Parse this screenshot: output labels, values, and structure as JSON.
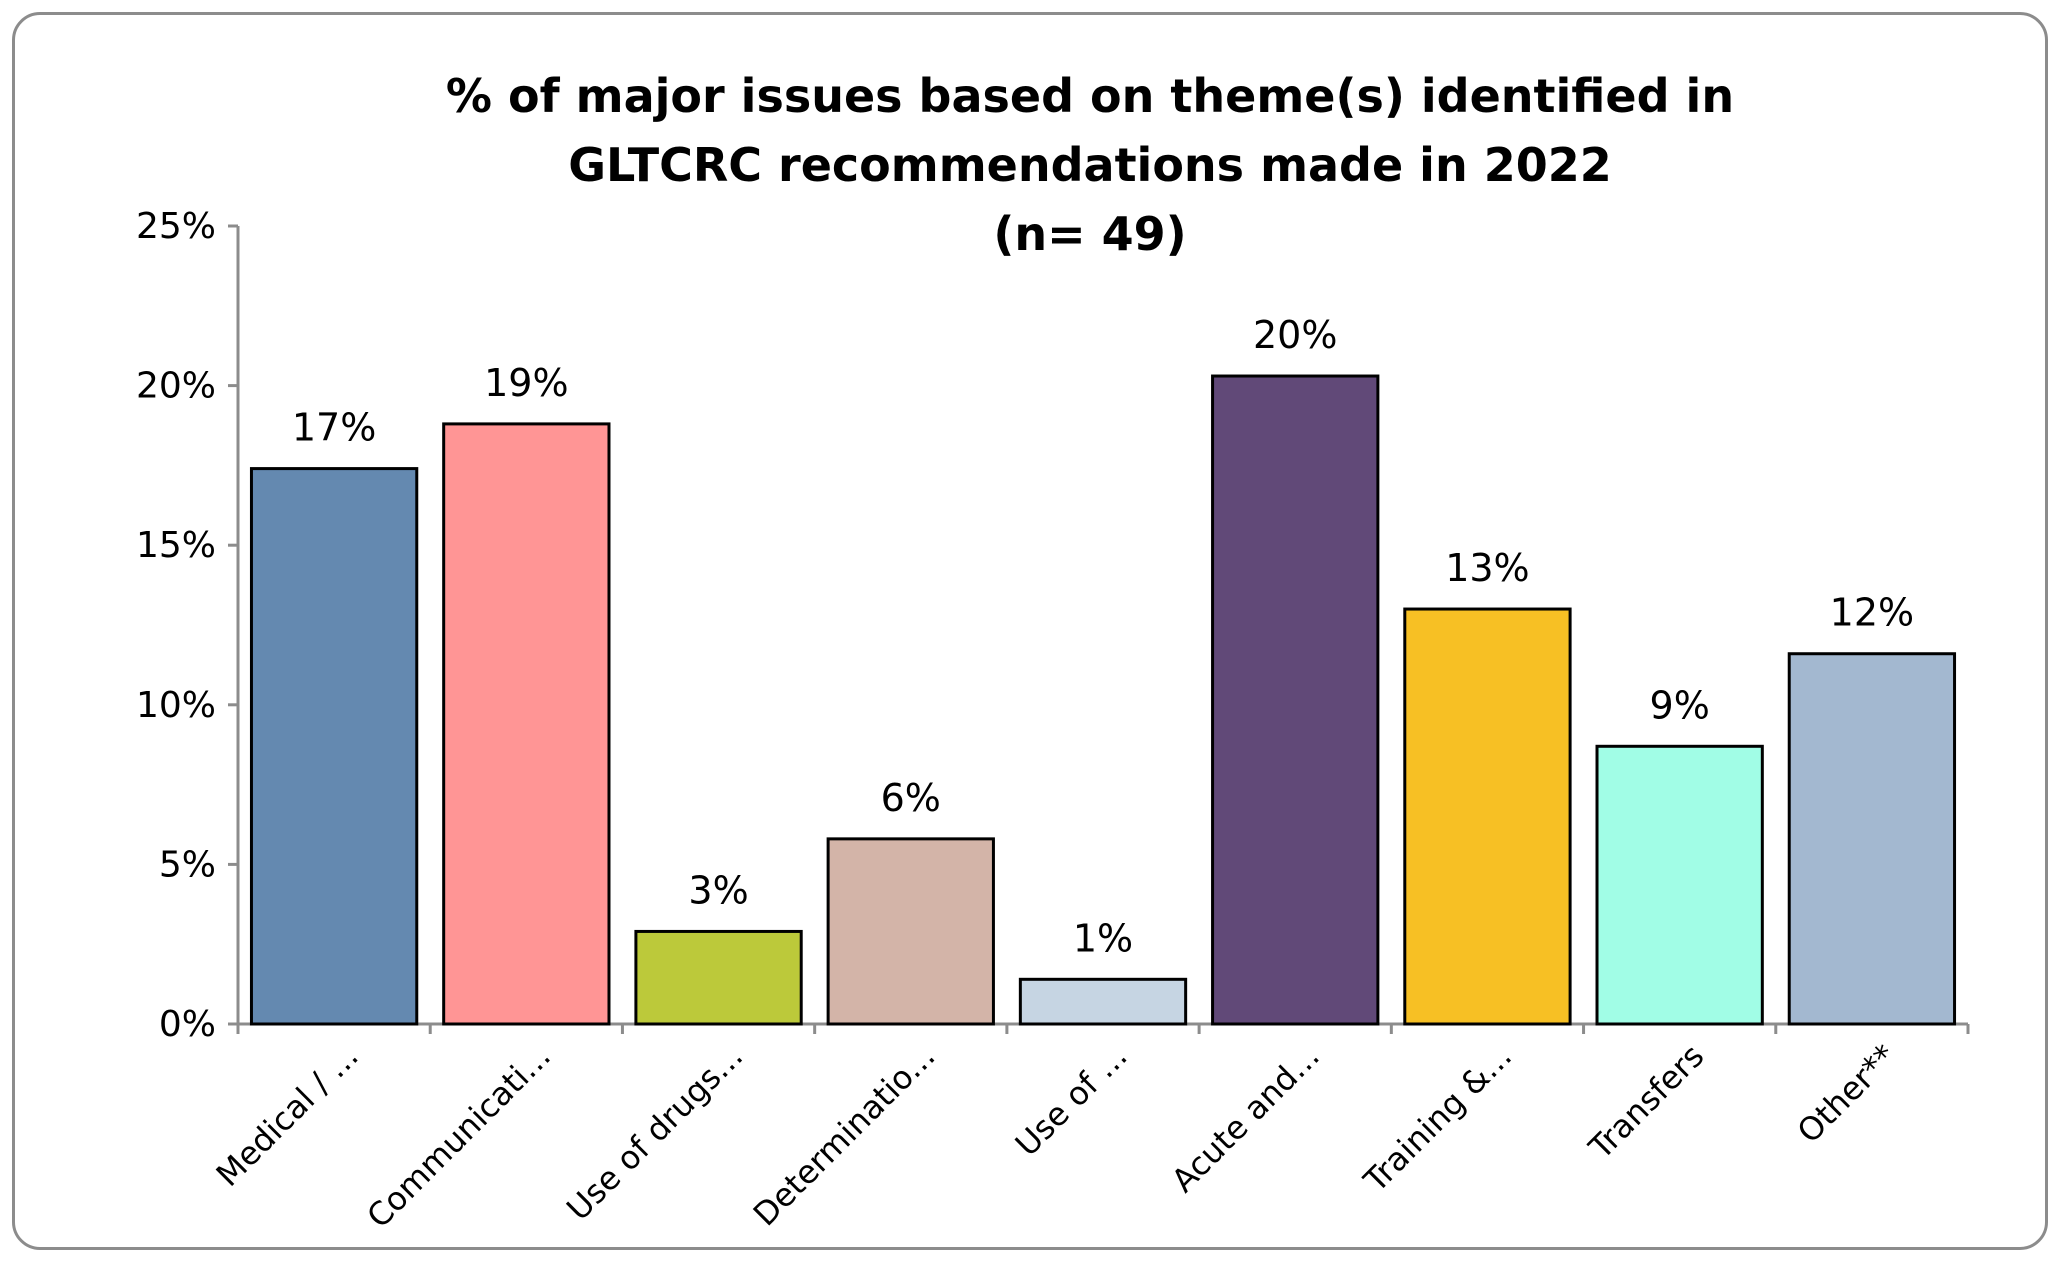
{
  "chart_data": {
    "type": "bar",
    "title_lines": [
      "% of major issues based on theme(s) identified in",
      "GLTCRC recommendations made in 2022",
      "(n= 49)"
    ],
    "categories": [
      "Medical / ...",
      "Communicati...",
      "Use of drugs...",
      "Determinatio...",
      "Use of ...",
      "Acute and...",
      "Training &...",
      "Transfers",
      "Other**"
    ],
    "values": [
      17.4,
      18.8,
      2.9,
      5.8,
      1.4,
      20.3,
      13.0,
      8.7,
      11.6
    ],
    "data_labels": [
      "17%",
      "19%",
      "3%",
      "6%",
      "1%",
      "20%",
      "13%",
      "9%",
      "12%"
    ],
    "colors": [
      "#6489b0",
      "#ff9595",
      "#bcc93a",
      "#d3b4a8",
      "#c6d5e3",
      "#614978",
      "#f7c024",
      "#a1fde6",
      "#a3b8d0"
    ],
    "ylim": [
      0,
      25
    ],
    "yticks": [
      0,
      5,
      10,
      15,
      20,
      25
    ],
    "ytick_labels": [
      "0%",
      "5%",
      "10%",
      "15%",
      "20%",
      "25%"
    ],
    "xlabel": "",
    "ylabel": "",
    "legend": "none",
    "grid": false
  }
}
